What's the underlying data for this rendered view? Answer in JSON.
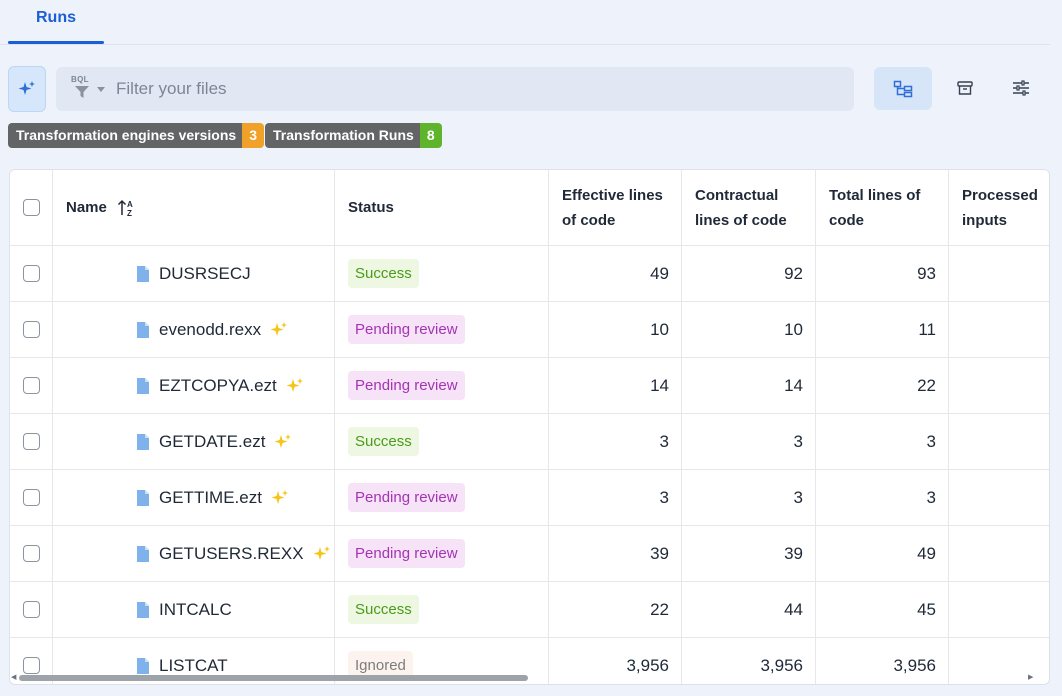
{
  "tabs": [
    {
      "label": "Runs"
    }
  ],
  "filter": {
    "bql_label": "BQL",
    "placeholder": "Filter your files"
  },
  "badges": [
    {
      "label": "Transformation engines versions",
      "count": "3"
    },
    {
      "label": "Transformation Runs",
      "count": "8"
    }
  ],
  "table": {
    "columns": {
      "name": "Name",
      "status": "Status",
      "effective": "Effective lines of code",
      "contractual": "Contractual lines of code",
      "total": "Total lines of code",
      "processed": "Processed inputs"
    },
    "rows": [
      {
        "name": "DUSRSECJ",
        "ai": false,
        "status": "Success",
        "effective": "49",
        "contractual": "92",
        "total": "93"
      },
      {
        "name": "evenodd.rexx",
        "ai": true,
        "status": "Pending review",
        "effective": "10",
        "contractual": "10",
        "total": "11"
      },
      {
        "name": "EZTCOPYA.ezt",
        "ai": true,
        "status": "Pending review",
        "effective": "14",
        "contractual": "14",
        "total": "22"
      },
      {
        "name": "GETDATE.ezt",
        "ai": true,
        "status": "Success",
        "effective": "3",
        "contractual": "3",
        "total": "3"
      },
      {
        "name": "GETTIME.ezt",
        "ai": true,
        "status": "Pending review",
        "effective": "3",
        "contractual": "3",
        "total": "3"
      },
      {
        "name": "GETUSERS.REXX",
        "ai": true,
        "status": "Pending review",
        "effective": "39",
        "contractual": "39",
        "total": "49"
      },
      {
        "name": "INTCALC",
        "ai": false,
        "status": "Success",
        "effective": "22",
        "contractual": "44",
        "total": "45"
      },
      {
        "name": "LISTCAT",
        "ai": false,
        "status": "Ignored",
        "effective": "3,956",
        "contractual": "3,956",
        "total": "3,956"
      }
    ]
  },
  "colors": {
    "accent": "#1a5fd6",
    "success": "#4a9c1a",
    "pending": "#a334b4",
    "sparkle": "#f5c518"
  }
}
